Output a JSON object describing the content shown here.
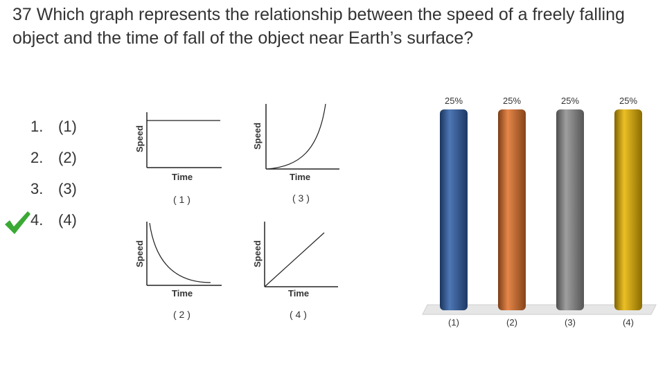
{
  "question": {
    "text": " 37 Which graph represents the relationship between the speed of a freely falling object and the time of fall of the object near Earth’s surface?"
  },
  "options": [
    {
      "number": "1.",
      "label": "(1)",
      "correct": false
    },
    {
      "number": "2.",
      "label": "(2)",
      "correct": false
    },
    {
      "number": "3.",
      "label": "(3)",
      "correct": false
    },
    {
      "number": "4.",
      "label": "(4)",
      "correct": true
    }
  ],
  "graphs": [
    {
      "id": "1",
      "ylabel": "Speed",
      "xlabel": "Time",
      "caption": "( 1 )",
      "shape": "constant"
    },
    {
      "id": "3",
      "ylabel": "Speed",
      "xlabel": "Time",
      "caption": "( 3 )",
      "shape": "increasing-curve"
    },
    {
      "id": "2",
      "ylabel": "Speed",
      "xlabel": "Time",
      "caption": "( 2 )",
      "shape": "decreasing-curve"
    },
    {
      "id": "4",
      "ylabel": "Speed",
      "xlabel": "Time",
      "caption": "( 4 )",
      "shape": "linear-increase"
    }
  ],
  "chart_data": {
    "type": "bar",
    "categories": [
      "(1)",
      "(2)",
      "(3)",
      "(4)"
    ],
    "values": [
      25,
      25,
      25,
      25
    ],
    "value_labels": [
      "25%",
      "25%",
      "25%",
      "25%"
    ],
    "ylim": [
      0,
      100
    ],
    "colors": [
      "#2f5fa8",
      "#e0712a",
      "#8e8e8e",
      "#e8b400"
    ],
    "grid": false
  },
  "colors": {
    "check": "#3aa935"
  }
}
